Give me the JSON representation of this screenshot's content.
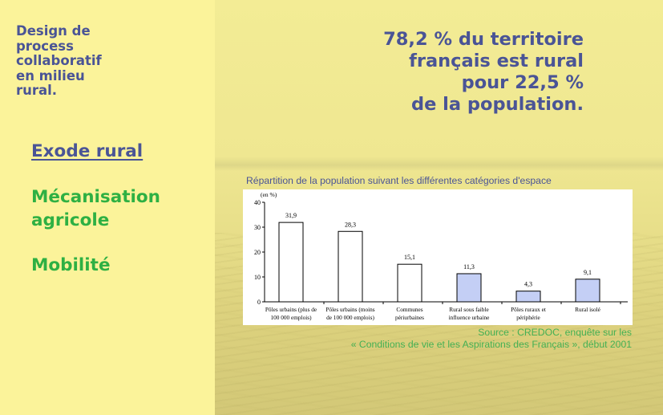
{
  "sidebar": {
    "project_title": "Design de\nprocess\ncollaboratif\nen milieu\nrural.",
    "causes": [
      "Exode rural",
      "Mécanisation\nagricole",
      "Mobilité"
    ]
  },
  "headline": "78,2 % du territoire\nfrançais est rural\npour 22,5 %\nde la population.",
  "chart_data": {
    "type": "bar",
    "title": "Répartition de la population suivant les différentes catégories d'espace",
    "ylabel": "(en %)",
    "ylim": [
      0,
      40
    ],
    "yticks": [
      0,
      10,
      20,
      30,
      40
    ],
    "categories": [
      [
        "Pôles urbains (plus de",
        "100 000 emplois)"
      ],
      [
        "Pôles urbains (moins",
        "de 100 000 emplois)"
      ],
      [
        "Communes",
        "périurbaines"
      ],
      [
        "Rural sous faible",
        "influence urbaine"
      ],
      [
        "Pôles ruraux et",
        "périphérie"
      ],
      [
        "Rural isolé"
      ]
    ],
    "values": [
      31.9,
      28.3,
      15.1,
      11.3,
      4.3,
      9.1
    ],
    "value_labels": [
      "31,9",
      "28,3",
      "15,1",
      "11,3",
      "4,3",
      "9,1"
    ],
    "bar_colors": [
      "#ffffff",
      "#ffffff",
      "#ffffff",
      "#c4cff5",
      "#c4cff5",
      "#c4cff5"
    ],
    "grid": false
  },
  "source": "Source : CREDOC, enquête sur les\n« Conditions de vie et les Aspirations des Français », début 2001",
  "colors": {
    "accent_blue": "#4a5496",
    "accent_green": "#2eb043",
    "left_panel_bg": "#fbf39a"
  }
}
